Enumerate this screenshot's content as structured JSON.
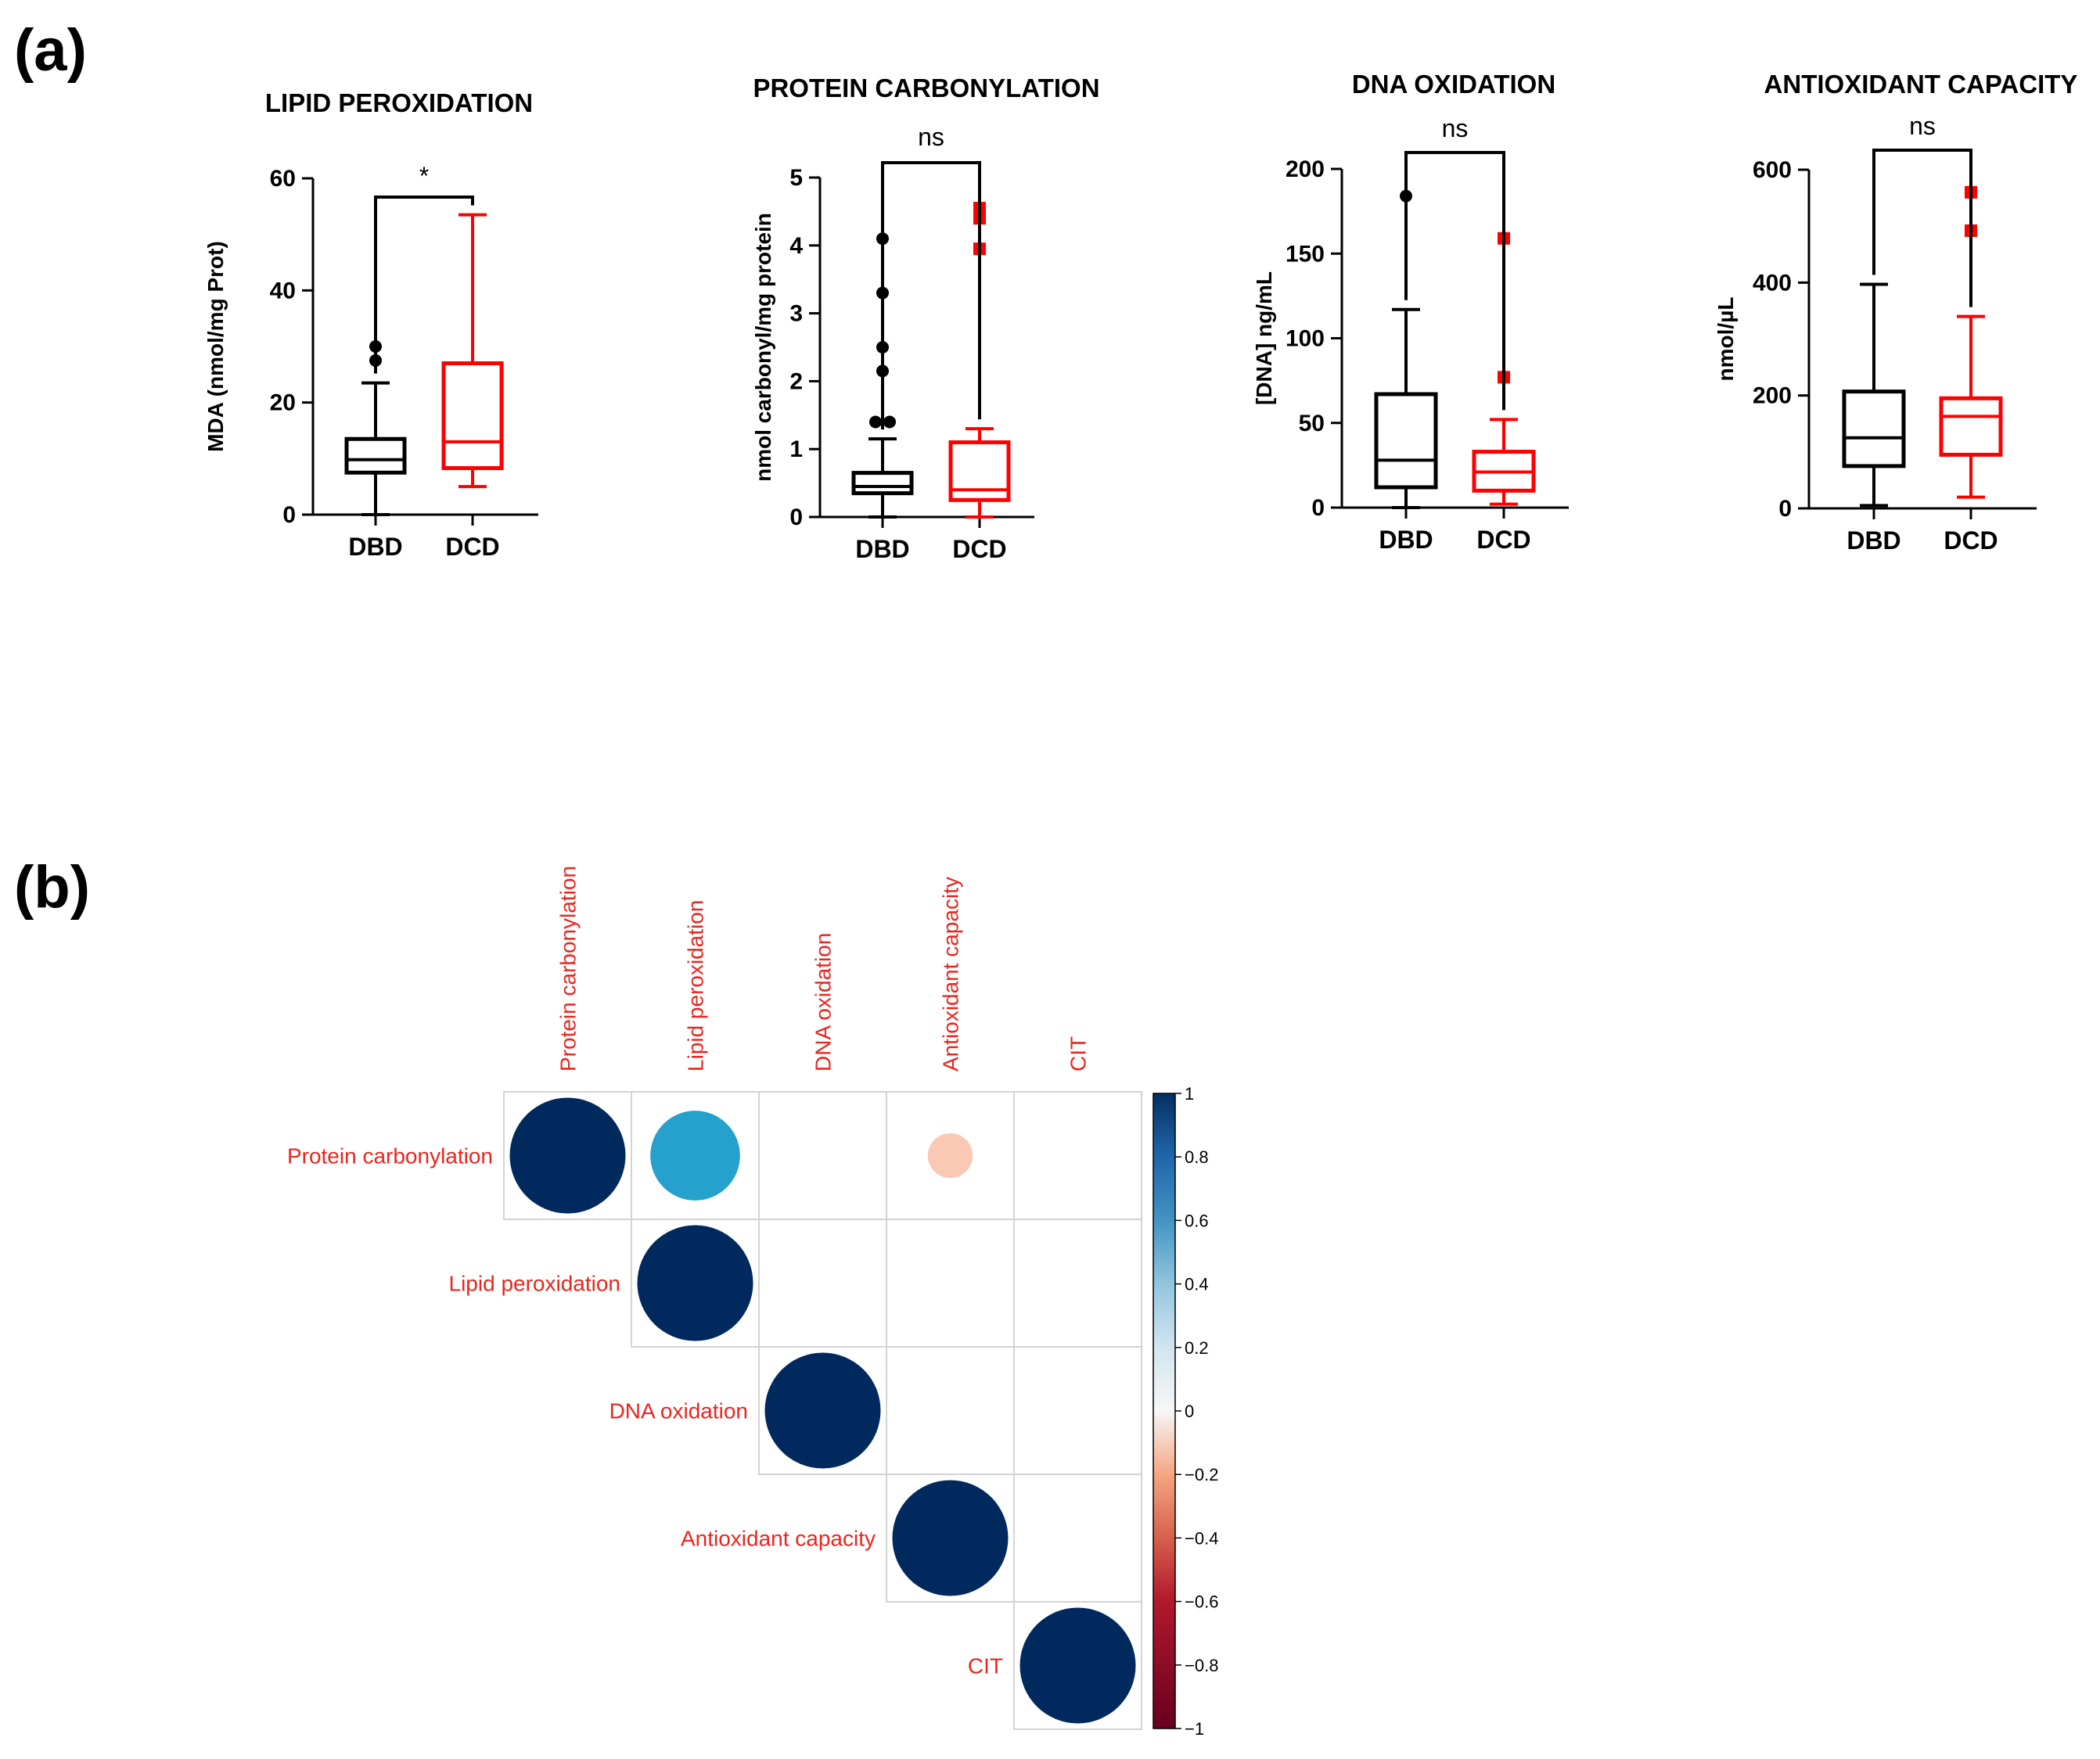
{
  "panels": {
    "a_label": "(a)",
    "b_label": "(b)"
  },
  "colors": {
    "DBD": "#000000",
    "DCD": "#ff0000",
    "corr_label": "#e8261f",
    "grid": "#d3d3d3"
  },
  "chart_data": [
    {
      "type": "box",
      "title": "LIPID PEROXIDATION",
      "ylabel": "MDA (nmol/mg Prot)",
      "ylim": [
        0,
        60
      ],
      "yticks": [
        0,
        20,
        40,
        60
      ],
      "categories": [
        "DBD",
        "DCD"
      ],
      "significance": "*",
      "series": [
        {
          "name": "DBD",
          "whisker_low": 0,
          "q1": 7.5,
          "median": 9.8,
          "q3": 13.5,
          "whisker_high": 23.5,
          "outliers": [
            27.5,
            30
          ]
        },
        {
          "name": "DCD",
          "whisker_low": 5,
          "q1": 8.3,
          "median": 13,
          "q3": 27,
          "whisker_high": 53.5,
          "outliers": []
        }
      ]
    },
    {
      "type": "box",
      "title": "PROTEIN CARBONYLATION",
      "ylabel": "nmol carbonyl/mg protein",
      "ylim": [
        0,
        5
      ],
      "yticks": [
        0,
        1,
        2,
        3,
        4,
        5
      ],
      "categories": [
        "DBD",
        "DCD"
      ],
      "significance": "ns",
      "series": [
        {
          "name": "DBD",
          "whisker_low": 0,
          "q1": 0.35,
          "median": 0.45,
          "q3": 0.65,
          "whisker_high": 1.15,
          "outliers": [
            1.4,
            1.4,
            2.15,
            2.5,
            3.3,
            4.1
          ]
        },
        {
          "name": "DCD",
          "whisker_low": 0,
          "q1": 0.25,
          "median": 0.4,
          "q3": 1.1,
          "whisker_high": 1.3,
          "outliers": [
            3.95,
            4.4,
            4.55
          ]
        }
      ]
    },
    {
      "type": "box",
      "title": "DNA OXIDATION",
      "ylabel": "[DNA] ng/mL",
      "ylim": [
        0,
        200
      ],
      "yticks": [
        0,
        50,
        100,
        150,
        200
      ],
      "categories": [
        "DBD",
        "DCD"
      ],
      "significance": "ns",
      "series": [
        {
          "name": "DBD",
          "whisker_low": 0,
          "q1": 12,
          "median": 28,
          "q3": 67,
          "whisker_high": 117,
          "outliers": [
            184
          ]
        },
        {
          "name": "DCD",
          "whisker_low": 2,
          "q1": 10,
          "median": 21,
          "q3": 33,
          "whisker_high": 52,
          "outliers": [
            77,
            159
          ]
        }
      ]
    },
    {
      "type": "box",
      "title": "ANTIOXIDANT CAPACITY",
      "ylabel": "nmol/µL",
      "ylim": [
        0,
        600
      ],
      "yticks": [
        0,
        200,
        400,
        600
      ],
      "categories": [
        "DBD",
        "DCD"
      ],
      "significance": "ns",
      "series": [
        {
          "name": "DBD",
          "whisker_low": 5,
          "q1": 75,
          "median": 125,
          "q3": 207,
          "whisker_high": 397,
          "outliers": []
        },
        {
          "name": "DCD",
          "whisker_low": 20,
          "q1": 95,
          "median": 163,
          "q3": 195,
          "whisker_high": 340,
          "outliers": [
            492,
            560
          ]
        }
      ]
    },
    {
      "type": "heatmap",
      "variables": [
        "Protein carbonylation",
        "Lipid peroxidation",
        "DNA oxidation",
        "Antioxidant capacity",
        "CIT"
      ],
      "matrix": [
        [
          1,
          0.6,
          0,
          -0.15,
          0
        ],
        [
          null,
          1,
          0,
          0,
          0
        ],
        [
          null,
          null,
          1,
          0,
          0
        ],
        [
          null,
          null,
          null,
          1,
          0
        ],
        [
          null,
          null,
          null,
          null,
          1
        ]
      ],
      "colorbar_ticks": [
        "1",
        "0.8",
        "0.6",
        "0.4",
        "0.2",
        "0",
        "−0.2",
        "−0.4",
        "−0.6",
        "−0.8",
        "−1"
      ],
      "colorbar_range": [
        -1,
        1
      ]
    }
  ]
}
